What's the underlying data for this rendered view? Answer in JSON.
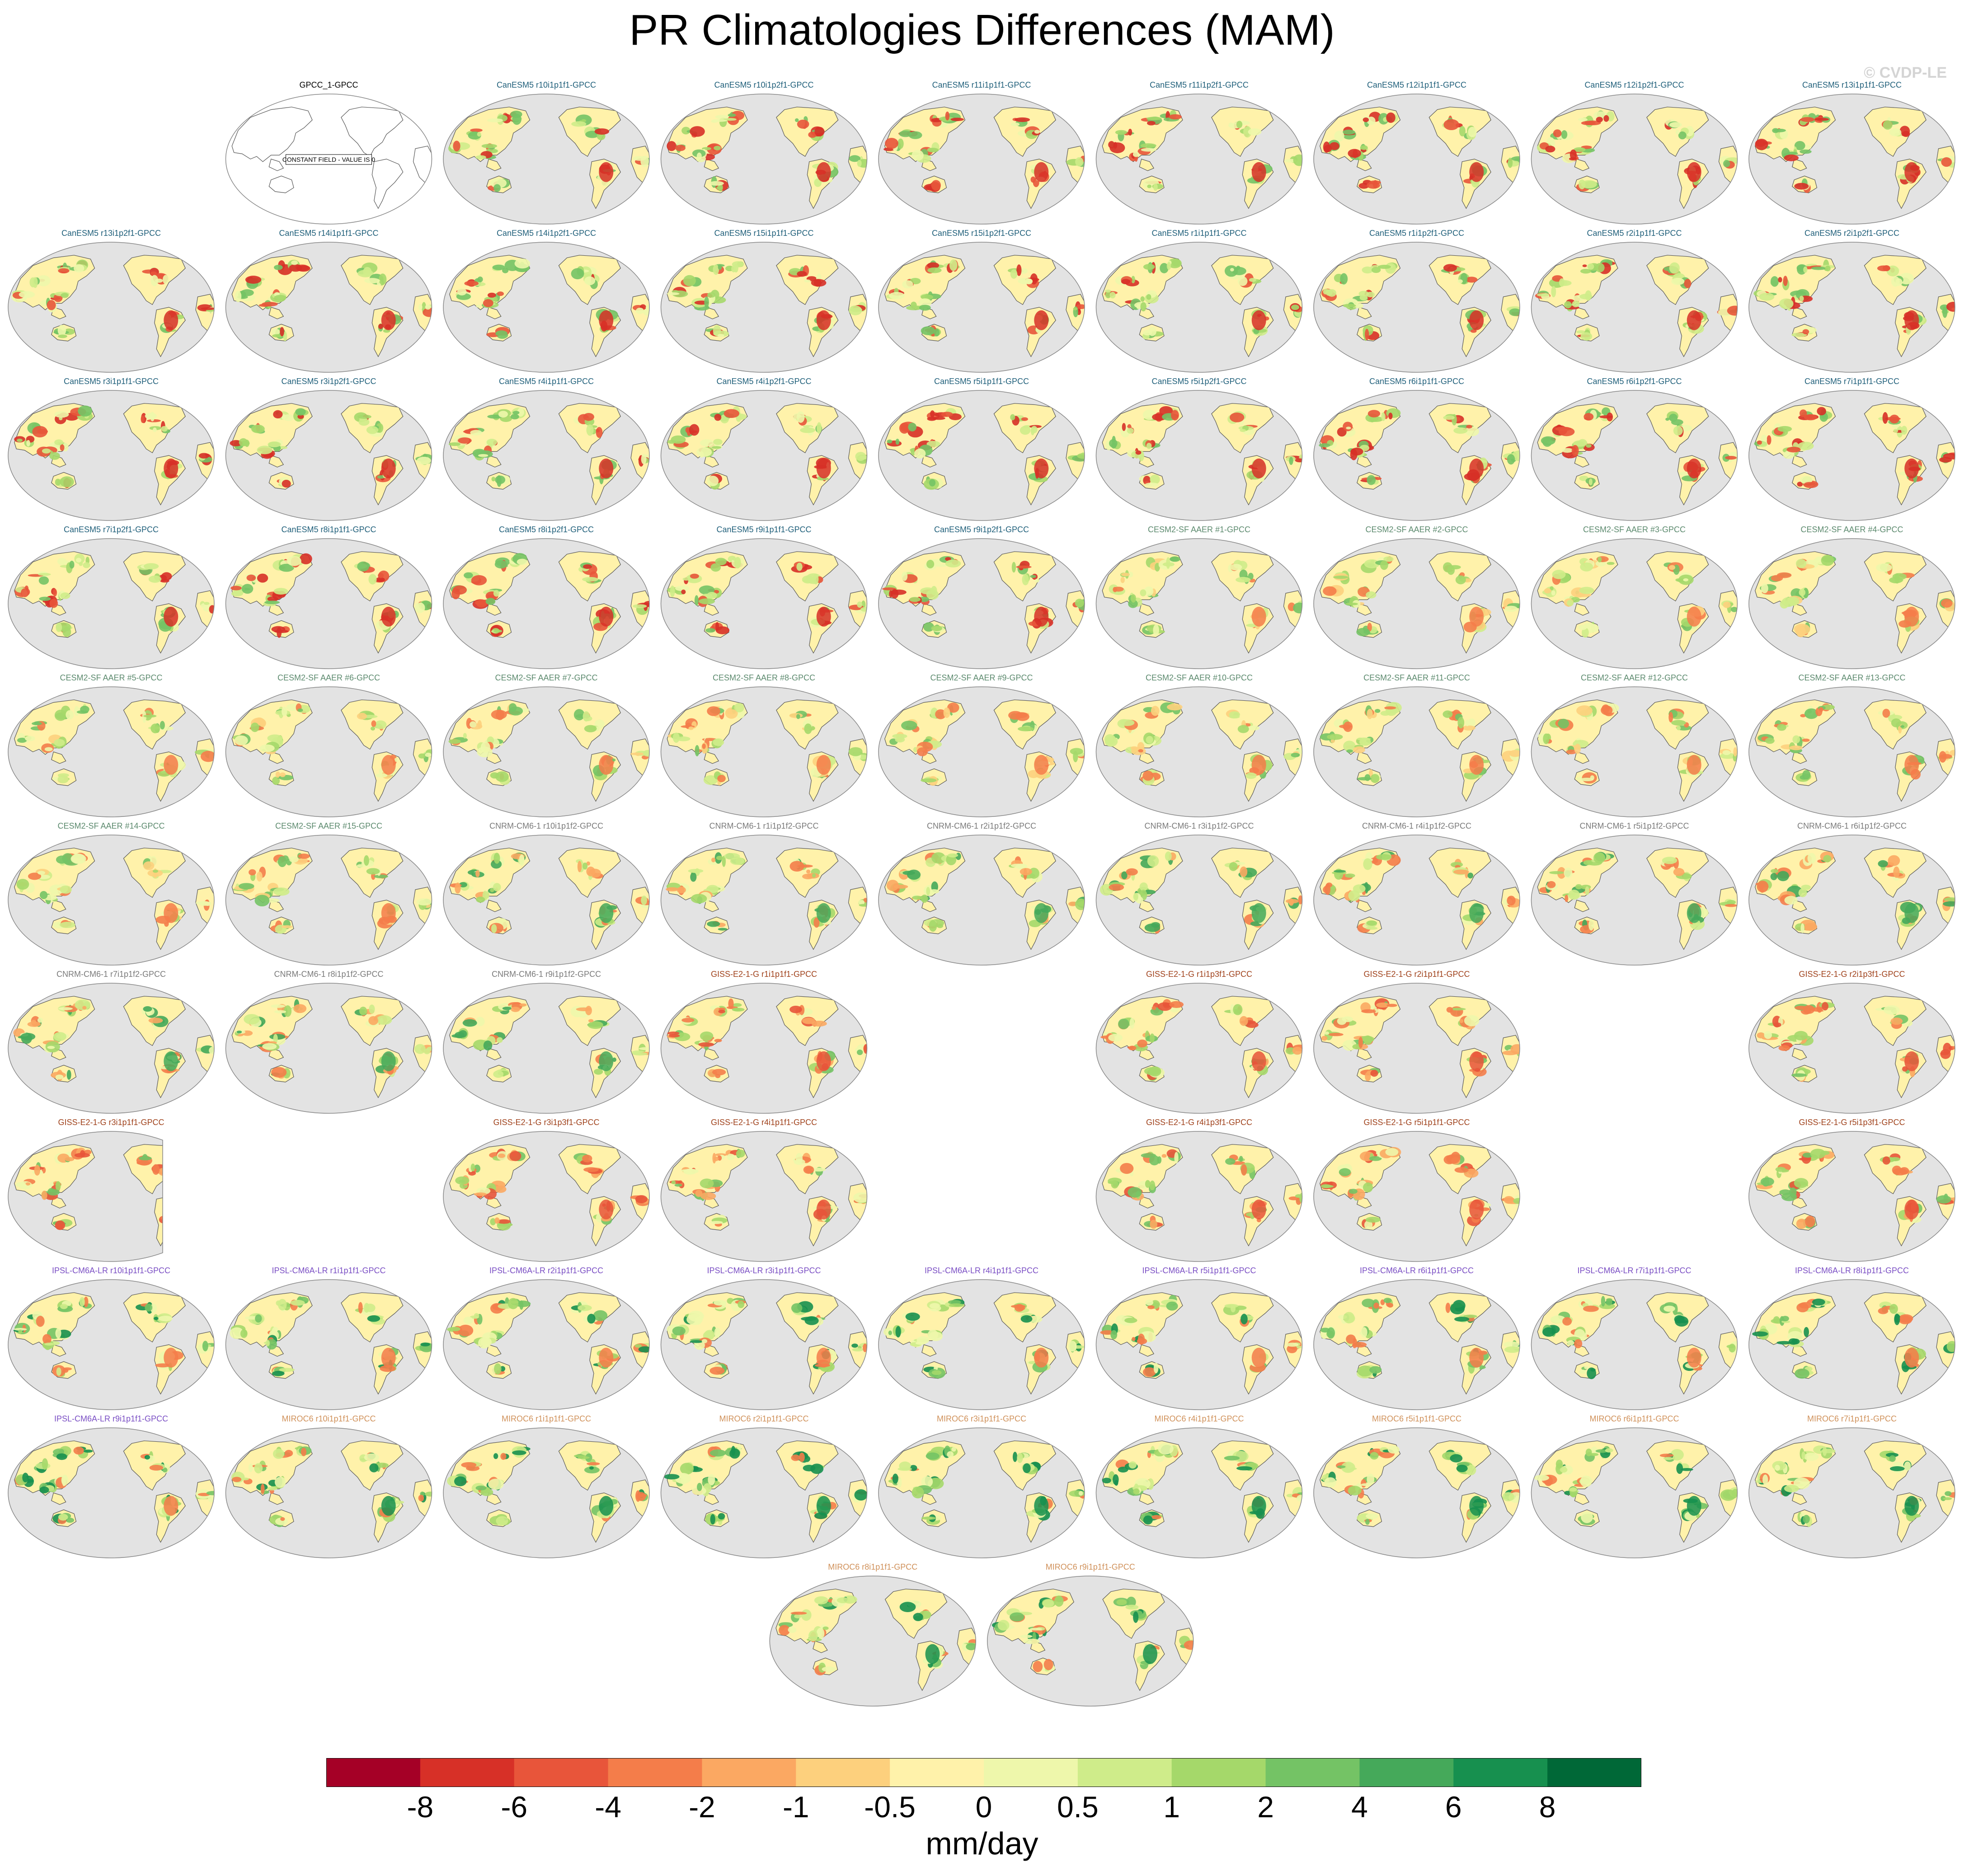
{
  "title": "PR Climatologies Differences (MAM)",
  "watermark": "© CVDP-LE",
  "units": "mm/day",
  "chart_data": {
    "type": "heatmap",
    "title": "PR Climatologies Differences (MAM)",
    "description_scale_label": "mm/day",
    "colorbar": {
      "tick_labels": [
        "-8",
        "-6",
        "-4",
        "-2",
        "-1",
        "-0.5",
        "0",
        "0.5",
        "1",
        "2",
        "4",
        "6",
        "8"
      ],
      "colors": [
        "#a50026",
        "#d73027",
        "#e8553a",
        "#f47d4a",
        "#fba862",
        "#fdd07d",
        "#fff2aa",
        "#eef7ab",
        "#cfec8a",
        "#a5d86a",
        "#74c365",
        "#45a95a",
        "#17904f",
        "#006837"
      ]
    },
    "ocean_color": "#e3e3e3",
    "panels": [
      {
        "row": 0,
        "col": 1,
        "title": "GPCC_1-GPCC",
        "model": "GPCC",
        "constant": true,
        "note": "CONSTANT FIELD - VALUE IS 0"
      },
      {
        "row": 0,
        "col": 2,
        "title": "CanESM5 r10i1p1f1-GPCC",
        "model": "CanESM5"
      },
      {
        "row": 0,
        "col": 3,
        "title": "CanESM5 r10i1p2f1-GPCC",
        "model": "CanESM5"
      },
      {
        "row": 0,
        "col": 4,
        "title": "CanESM5 r11i1p1f1-GPCC",
        "model": "CanESM5"
      },
      {
        "row": 0,
        "col": 5,
        "title": "CanESM5 r11i1p2f1-GPCC",
        "model": "CanESM5"
      },
      {
        "row": 0,
        "col": 6,
        "title": "CanESM5 r12i1p1f1-GPCC",
        "model": "CanESM5"
      },
      {
        "row": 0,
        "col": 7,
        "title": "CanESM5 r12i1p2f1-GPCC",
        "model": "CanESM5"
      },
      {
        "row": 0,
        "col": 8,
        "title": "CanESM5 r13i1p1f1-GPCC",
        "model": "CanESM5"
      },
      {
        "row": 1,
        "col": 0,
        "title": "CanESM5 r13i1p2f1-GPCC",
        "model": "CanESM5"
      },
      {
        "row": 1,
        "col": 1,
        "title": "CanESM5 r14i1p1f1-GPCC",
        "model": "CanESM5"
      },
      {
        "row": 1,
        "col": 2,
        "title": "CanESM5 r14i1p2f1-GPCC",
        "model": "CanESM5"
      },
      {
        "row": 1,
        "col": 3,
        "title": "CanESM5 r15i1p1f1-GPCC",
        "model": "CanESM5"
      },
      {
        "row": 1,
        "col": 4,
        "title": "CanESM5 r15i1p2f1-GPCC",
        "model": "CanESM5"
      },
      {
        "row": 1,
        "col": 5,
        "title": "CanESM5 r1i1p1f1-GPCC",
        "model": "CanESM5"
      },
      {
        "row": 1,
        "col": 6,
        "title": "CanESM5 r1i1p2f1-GPCC",
        "model": "CanESM5"
      },
      {
        "row": 1,
        "col": 7,
        "title": "CanESM5 r2i1p1f1-GPCC",
        "model": "CanESM5"
      },
      {
        "row": 1,
        "col": 8,
        "title": "CanESM5 r2i1p2f1-GPCC",
        "model": "CanESM5"
      },
      {
        "row": 2,
        "col": 0,
        "title": "CanESM5 r3i1p1f1-GPCC",
        "model": "CanESM5"
      },
      {
        "row": 2,
        "col": 1,
        "title": "CanESM5 r3i1p2f1-GPCC",
        "model": "CanESM5"
      },
      {
        "row": 2,
        "col": 2,
        "title": "CanESM5 r4i1p1f1-GPCC",
        "model": "CanESM5"
      },
      {
        "row": 2,
        "col": 3,
        "title": "CanESM5 r4i1p2f1-GPCC",
        "model": "CanESM5"
      },
      {
        "row": 2,
        "col": 4,
        "title": "CanESM5 r5i1p1f1-GPCC",
        "model": "CanESM5"
      },
      {
        "row": 2,
        "col": 5,
        "title": "CanESM5 r5i1p2f1-GPCC",
        "model": "CanESM5"
      },
      {
        "row": 2,
        "col": 6,
        "title": "CanESM5 r6i1p1f1-GPCC",
        "model": "CanESM5"
      },
      {
        "row": 2,
        "col": 7,
        "title": "CanESM5 r6i1p2f1-GPCC",
        "model": "CanESM5"
      },
      {
        "row": 2,
        "col": 8,
        "title": "CanESM5 r7i1p1f1-GPCC",
        "model": "CanESM5"
      },
      {
        "row": 3,
        "col": 0,
        "title": "CanESM5 r7i1p2f1-GPCC",
        "model": "CanESM5"
      },
      {
        "row": 3,
        "col": 1,
        "title": "CanESM5 r8i1p1f1-GPCC",
        "model": "CanESM5"
      },
      {
        "row": 3,
        "col": 2,
        "title": "CanESM5 r8i1p2f1-GPCC",
        "model": "CanESM5"
      },
      {
        "row": 3,
        "col": 3,
        "title": "CanESM5 r9i1p1f1-GPCC",
        "model": "CanESM5"
      },
      {
        "row": 3,
        "col": 4,
        "title": "CanESM5 r9i1p2f1-GPCC",
        "model": "CanESM5"
      },
      {
        "row": 3,
        "col": 5,
        "title": "CESM2-SF AAER #1-GPCC",
        "model": "CESM2"
      },
      {
        "row": 3,
        "col": 6,
        "title": "CESM2-SF AAER #2-GPCC",
        "model": "CESM2"
      },
      {
        "row": 3,
        "col": 7,
        "title": "CESM2-SF AAER #3-GPCC",
        "model": "CESM2"
      },
      {
        "row": 3,
        "col": 8,
        "title": "CESM2-SF AAER #4-GPCC",
        "model": "CESM2"
      },
      {
        "row": 4,
        "col": 0,
        "title": "CESM2-SF AAER #5-GPCC",
        "model": "CESM2"
      },
      {
        "row": 4,
        "col": 1,
        "title": "CESM2-SF AAER #6-GPCC",
        "model": "CESM2"
      },
      {
        "row": 4,
        "col": 2,
        "title": "CESM2-SF AAER #7-GPCC",
        "model": "CESM2"
      },
      {
        "row": 4,
        "col": 3,
        "title": "CESM2-SF AAER #8-GPCC",
        "model": "CESM2"
      },
      {
        "row": 4,
        "col": 4,
        "title": "CESM2-SF AAER #9-GPCC",
        "model": "CESM2"
      },
      {
        "row": 4,
        "col": 5,
        "title": "CESM2-SF AAER #10-GPCC",
        "model": "CESM2"
      },
      {
        "row": 4,
        "col": 6,
        "title": "CESM2-SF AAER #11-GPCC",
        "model": "CESM2"
      },
      {
        "row": 4,
        "col": 7,
        "title": "CESM2-SF AAER #12-GPCC",
        "model": "CESM2"
      },
      {
        "row": 4,
        "col": 8,
        "title": "CESM2-SF AAER #13-GPCC",
        "model": "CESM2"
      },
      {
        "row": 5,
        "col": 0,
        "title": "CESM2-SF AAER #14-GPCC",
        "model": "CESM2"
      },
      {
        "row": 5,
        "col": 1,
        "title": "CESM2-SF AAER #15-GPCC",
        "model": "CESM2"
      },
      {
        "row": 5,
        "col": 2,
        "title": "CNRM-CM6-1 r10i1p1f2-GPCC",
        "model": "CNRM"
      },
      {
        "row": 5,
        "col": 3,
        "title": "CNRM-CM6-1 r1i1p1f2-GPCC",
        "model": "CNRM"
      },
      {
        "row": 5,
        "col": 4,
        "title": "CNRM-CM6-1 r2i1p1f2-GPCC",
        "model": "CNRM"
      },
      {
        "row": 5,
        "col": 5,
        "title": "CNRM-CM6-1 r3i1p1f2-GPCC",
        "model": "CNRM"
      },
      {
        "row": 5,
        "col": 6,
        "title": "CNRM-CM6-1 r4i1p1f2-GPCC",
        "model": "CNRM"
      },
      {
        "row": 5,
        "col": 7,
        "title": "CNRM-CM6-1 r5i1p1f2-GPCC",
        "model": "CNRM"
      },
      {
        "row": 5,
        "col": 8,
        "title": "CNRM-CM6-1 r6i1p1f2-GPCC",
        "model": "CNRM"
      },
      {
        "row": 6,
        "col": 0,
        "title": "CNRM-CM6-1 r7i1p1f2-GPCC",
        "model": "CNRM"
      },
      {
        "row": 6,
        "col": 1,
        "title": "CNRM-CM6-1 r8i1p1f2-GPCC",
        "model": "CNRM"
      },
      {
        "row": 6,
        "col": 2,
        "title": "CNRM-CM6-1 r9i1p1f2-GPCC",
        "model": "CNRM"
      },
      {
        "row": 6,
        "col": 3,
        "title": "GISS-E2-1-G r1i1p1f1-GPCC",
        "model": "GISS"
      },
      {
        "row": 6,
        "col": 5,
        "title": "GISS-E2-1-G r1i1p3f1-GPCC",
        "model": "GISS"
      },
      {
        "row": 6,
        "col": 6,
        "title": "GISS-E2-1-G r2i1p1f1-GPCC",
        "model": "GISS"
      },
      {
        "row": 6,
        "col": 8,
        "title": "GISS-E2-1-G r2i1p3f1-GPCC",
        "model": "GISS"
      },
      {
        "row": 7,
        "col": 0,
        "title": "GISS-E2-1-G r3i1p1f1-GPCC",
        "model": "GISS",
        "partial": true
      },
      {
        "row": 7,
        "col": 2,
        "title": "GISS-E2-1-G r3i1p3f1-GPCC",
        "model": "GISS"
      },
      {
        "row": 7,
        "col": 3,
        "title": "GISS-E2-1-G r4i1p1f1-GPCC",
        "model": "GISS"
      },
      {
        "row": 7,
        "col": 5,
        "title": "GISS-E2-1-G r4i1p3f1-GPCC",
        "model": "GISS"
      },
      {
        "row": 7,
        "col": 6,
        "title": "GISS-E2-1-G r5i1p1f1-GPCC",
        "model": "GISS"
      },
      {
        "row": 7,
        "col": 8,
        "title": "GISS-E2-1-G r5i1p3f1-GPCC",
        "model": "GISS"
      },
      {
        "row": 8,
        "col": 0,
        "title": "IPSL-CM6A-LR r10i1p1f1-GPCC",
        "model": "IPSL"
      },
      {
        "row": 8,
        "col": 1,
        "title": "IPSL-CM6A-LR r1i1p1f1-GPCC",
        "model": "IPSL"
      },
      {
        "row": 8,
        "col": 2,
        "title": "IPSL-CM6A-LR r2i1p1f1-GPCC",
        "model": "IPSL"
      },
      {
        "row": 8,
        "col": 3,
        "title": "IPSL-CM6A-LR r3i1p1f1-GPCC",
        "model": "IPSL"
      },
      {
        "row": 8,
        "col": 4,
        "title": "IPSL-CM6A-LR r4i1p1f1-GPCC",
        "model": "IPSL"
      },
      {
        "row": 8,
        "col": 5,
        "title": "IPSL-CM6A-LR r5i1p1f1-GPCC",
        "model": "IPSL"
      },
      {
        "row": 8,
        "col": 6,
        "title": "IPSL-CM6A-LR r6i1p1f1-GPCC",
        "model": "IPSL"
      },
      {
        "row": 8,
        "col": 7,
        "title": "IPSL-CM6A-LR r7i1p1f1-GPCC",
        "model": "IPSL"
      },
      {
        "row": 8,
        "col": 8,
        "title": "IPSL-CM6A-LR r8i1p1f1-GPCC",
        "model": "IPSL"
      },
      {
        "row": 9,
        "col": 0,
        "title": "IPSL-CM6A-LR r9i1p1f1-GPCC",
        "model": "IPSL"
      },
      {
        "row": 9,
        "col": 1,
        "title": "MIROC6 r10i1p1f1-GPCC",
        "model": "MIROC"
      },
      {
        "row": 9,
        "col": 2,
        "title": "MIROC6 r1i1p1f1-GPCC",
        "model": "MIROC"
      },
      {
        "row": 9,
        "col": 3,
        "title": "MIROC6 r2i1p1f1-GPCC",
        "model": "MIROC"
      },
      {
        "row": 9,
        "col": 4,
        "title": "MIROC6 r3i1p1f1-GPCC",
        "model": "MIROC"
      },
      {
        "row": 9,
        "col": 5,
        "title": "MIROC6 r4i1p1f1-GPCC",
        "model": "MIROC"
      },
      {
        "row": 9,
        "col": 6,
        "title": "MIROC6 r5i1p1f1-GPCC",
        "model": "MIROC"
      },
      {
        "row": 9,
        "col": 7,
        "title": "MIROC6 r6i1p1f1-GPCC",
        "model": "MIROC"
      },
      {
        "row": 9,
        "col": 8,
        "title": "MIROC6 r7i1p1f1-GPCC",
        "model": "MIROC"
      },
      {
        "row": 10,
        "col": 3.5,
        "title": "MIROC6 r8i1p1f1-GPCC",
        "model": "MIROC"
      },
      {
        "row": 10,
        "col": 4.5,
        "title": "MIROC6 r9i1p1f1-GPCC",
        "model": "MIROC"
      }
    ]
  },
  "model_colors": {
    "GPCC": "#000000",
    "CanESM5": "#1f5f7a",
    "CESM2": "#5c8a6e",
    "CNRM": "#7a7a7a",
    "GISS": "#a0421c",
    "IPSL": "#7a4ec4",
    "MIROC": "#d0915a"
  },
  "model_palette": {
    "CanESM5": [
      "#fff2aa",
      "#eef7ab",
      "#cfec8a",
      "#a5d86a",
      "#74c365",
      "#e8553a",
      "#d73027"
    ],
    "CESM2": [
      "#fff2aa",
      "#eef7ab",
      "#cfec8a",
      "#a5d86a",
      "#74c365",
      "#fdd07d",
      "#f47d4a"
    ],
    "CNRM": [
      "#fff2aa",
      "#eef7ab",
      "#cfec8a",
      "#a5d86a",
      "#fba862",
      "#f47d4a",
      "#45a95a"
    ],
    "GISS": [
      "#fff2aa",
      "#eef7ab",
      "#a5d86a",
      "#74c365",
      "#fba862",
      "#f47d4a",
      "#e8553a"
    ],
    "IPSL": [
      "#fff2aa",
      "#eef7ab",
      "#cfec8a",
      "#a5d86a",
      "#74c365",
      "#17904f",
      "#f47d4a"
    ],
    "MIROC": [
      "#fff2aa",
      "#eef7ab",
      "#cfec8a",
      "#a5d86a",
      "#74c365",
      "#f47d4a",
      "#17904f"
    ]
  }
}
